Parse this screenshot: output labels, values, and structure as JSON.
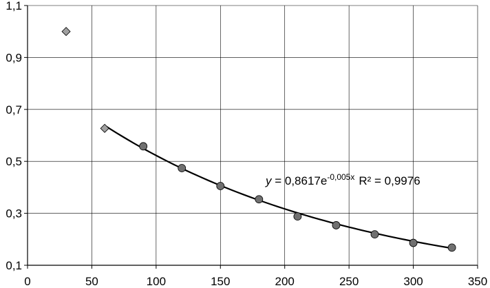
{
  "chart_data": {
    "type": "scatter",
    "xlim": [
      0,
      350
    ],
    "ylim": [
      0.1,
      1.1
    ],
    "x_ticks": [
      "0",
      "50",
      "100",
      "150",
      "200",
      "250",
      "300",
      "350"
    ],
    "y_ticks": [
      "0,1",
      "0,3",
      "0,5",
      "0,7",
      "0,9",
      "1,1"
    ],
    "grid": true,
    "series": [
      {
        "marker": "diamond",
        "color": "#a0a0a0",
        "points": [
          [
            30,
            1.0
          ],
          [
            60,
            0.627
          ]
        ]
      },
      {
        "marker": "circle",
        "color": "#707070",
        "points": [
          [
            90,
            0.558
          ],
          [
            120,
            0.474
          ],
          [
            150,
            0.405
          ],
          [
            180,
            0.354
          ],
          [
            210,
            0.288
          ],
          [
            240,
            0.254
          ],
          [
            270,
            0.219
          ],
          [
            300,
            0.186
          ],
          [
            330,
            0.168
          ]
        ]
      }
    ],
    "trendline": {
      "type": "exponential",
      "a": 0.8617,
      "b": -0.005,
      "x_range": [
        60,
        330
      ],
      "color": "#000000"
    },
    "annotation": {
      "eq_prefix": "y = 0,8617e",
      "eq_exponent": "-0,005x",
      "r2_text": "R² = 0,9976"
    }
  }
}
